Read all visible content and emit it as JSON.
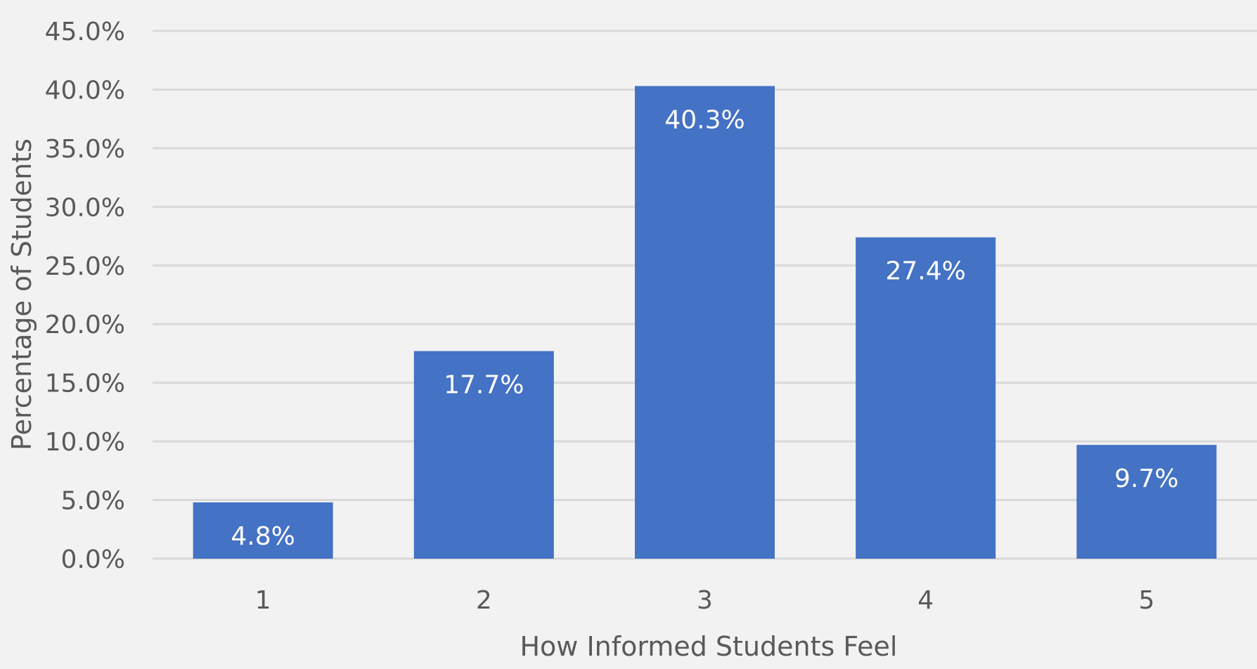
{
  "chart_data": {
    "type": "bar",
    "categories": [
      "1",
      "2",
      "3",
      "4",
      "5"
    ],
    "values": [
      4.8,
      17.7,
      40.3,
      27.4,
      9.7
    ],
    "data_labels": [
      "4.8%",
      "17.7%",
      "40.3%",
      "27.4%",
      "9.7%"
    ],
    "title": "",
    "xlabel": "How Informed Students Feel",
    "ylabel": "Percentage of Students",
    "ylim": [
      0,
      45
    ],
    "yticks": [
      0,
      5,
      10,
      15,
      20,
      25,
      30,
      35,
      40,
      45
    ],
    "ytick_labels": [
      "0.0%",
      "5.0%",
      "10.0%",
      "15.0%",
      "20.0%",
      "25.0%",
      "30.0%",
      "35.0%",
      "40.0%",
      "45.0%"
    ],
    "grid": "horizontal",
    "legend": "none",
    "colors": {
      "background": "#f2f2f2",
      "bar": "#4472c4",
      "gridline": "#d9d9d9",
      "axis_text": "#595959",
      "data_label": "#ffffff"
    }
  }
}
